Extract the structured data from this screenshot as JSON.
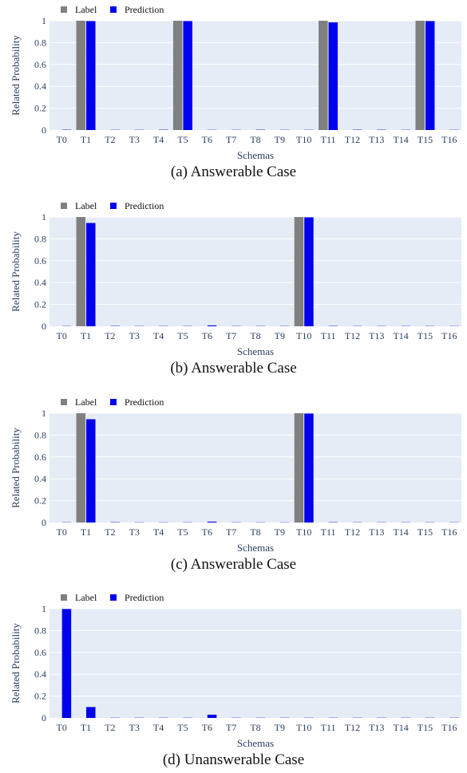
{
  "colors": {
    "label": "#808080",
    "prediction": "#0000ee",
    "plot_bg": "#e5ecf6",
    "text": "#2a3f5f"
  },
  "chart_data": [
    {
      "type": "bar",
      "caption": "(a) Answerable Case",
      "xlabel": "Schemas",
      "ylabel": "Related Probability",
      "ylim": [
        0,
        1
      ],
      "yticks": [
        0,
        0.2,
        0.4,
        0.6,
        0.8,
        1
      ],
      "ytick_labels": [
        "0",
        "0.2",
        "0.4",
        "0.6",
        "0.8",
        "1"
      ],
      "legend": "top-left",
      "categories": [
        "T0",
        "T1",
        "T2",
        "T3",
        "T4",
        "T5",
        "T6",
        "T7",
        "T8",
        "T9",
        "T10",
        "T11",
        "T12",
        "T13",
        "T14",
        "T15",
        "T16"
      ],
      "series": [
        {
          "name": "Label",
          "values": [
            0,
            1,
            0,
            0,
            0,
            1,
            0,
            0,
            0,
            0,
            0,
            1,
            0,
            0,
            0,
            1,
            0
          ]
        },
        {
          "name": "Prediction",
          "values": [
            0.003,
            0.997,
            0.002,
            0.002,
            0.003,
            0.997,
            0.002,
            0.002,
            0.003,
            0.002,
            0.002,
            0.985,
            0.003,
            0.003,
            0.002,
            0.997,
            0.002
          ]
        }
      ]
    },
    {
      "type": "bar",
      "caption": "(b) Answerable Case",
      "xlabel": "Schemas",
      "ylabel": "Related Probability",
      "ylim": [
        0,
        1
      ],
      "yticks": [
        0,
        0.2,
        0.4,
        0.6,
        0.8,
        1
      ],
      "ytick_labels": [
        "0",
        "0.2",
        "0.4",
        "0.6",
        "0.8",
        "1"
      ],
      "legend": "top-left",
      "categories": [
        "T0",
        "T1",
        "T2",
        "T3",
        "T4",
        "T5",
        "T6",
        "T7",
        "T8",
        "T9",
        "T10",
        "T11",
        "T12",
        "T13",
        "T14",
        "T15",
        "T16"
      ],
      "series": [
        {
          "name": "Label",
          "values": [
            0,
            1,
            0,
            0,
            0,
            0,
            0,
            0,
            0,
            0,
            1,
            0,
            0,
            0,
            0,
            0,
            0
          ]
        },
        {
          "name": "Prediction",
          "values": [
            0.002,
            0.945,
            0.003,
            0.002,
            0.002,
            0.002,
            0.008,
            0.002,
            0.002,
            0.002,
            0.997,
            0.003,
            0.002,
            0.002,
            0.002,
            0.002,
            0.002
          ]
        }
      ]
    },
    {
      "type": "bar",
      "caption": "(c) Answerable Case",
      "xlabel": "Schemas",
      "ylabel": "Related Probability",
      "ylim": [
        0,
        1
      ],
      "yticks": [
        0,
        0.2,
        0.4,
        0.6,
        0.8,
        1
      ],
      "ytick_labels": [
        "0",
        "0.2",
        "0.4",
        "0.6",
        "0.8",
        "1"
      ],
      "legend": "top-left",
      "categories": [
        "T0",
        "T1",
        "T2",
        "T3",
        "T4",
        "T5",
        "T6",
        "T7",
        "T8",
        "T9",
        "T10",
        "T11",
        "T12",
        "T13",
        "T14",
        "T15",
        "T16"
      ],
      "series": [
        {
          "name": "Label",
          "values": [
            0,
            1,
            0,
            0,
            0,
            0,
            0,
            0,
            0,
            0,
            1,
            0,
            0,
            0,
            0,
            0,
            0
          ]
        },
        {
          "name": "Prediction",
          "values": [
            0.002,
            0.945,
            0.003,
            0.002,
            0.002,
            0.002,
            0.008,
            0.002,
            0.002,
            0.002,
            0.997,
            0.003,
            0.002,
            0.002,
            0.002,
            0.002,
            0.002
          ]
        }
      ]
    },
    {
      "type": "bar",
      "caption": "(d) Unanswerable Case",
      "xlabel": "Schemas",
      "ylabel": "Related Probability",
      "ylim": [
        0,
        1
      ],
      "yticks": [
        0,
        0.2,
        0.4,
        0.6,
        0.8,
        1
      ],
      "ytick_labels": [
        "0",
        "0.2",
        "0.4",
        "0.6",
        "0.8",
        "1"
      ],
      "legend": "top-left",
      "categories": [
        "T0",
        "T1",
        "T2",
        "T3",
        "T4",
        "T5",
        "T6",
        "T7",
        "T8",
        "T9",
        "T10",
        "T11",
        "T12",
        "T13",
        "T14",
        "T15",
        "T16"
      ],
      "series": [
        {
          "name": "Label",
          "values": [
            0,
            0,
            0,
            0,
            0,
            0,
            0,
            0,
            0,
            0,
            0,
            0,
            0,
            0,
            0,
            0,
            0
          ]
        },
        {
          "name": "Prediction",
          "values": [
            0.997,
            0.1,
            0.002,
            0.002,
            0.002,
            0.002,
            0.03,
            0.002,
            0.002,
            0.002,
            0.002,
            0.002,
            0.002,
            0.002,
            0.002,
            0.002,
            0.002
          ]
        }
      ]
    }
  ]
}
